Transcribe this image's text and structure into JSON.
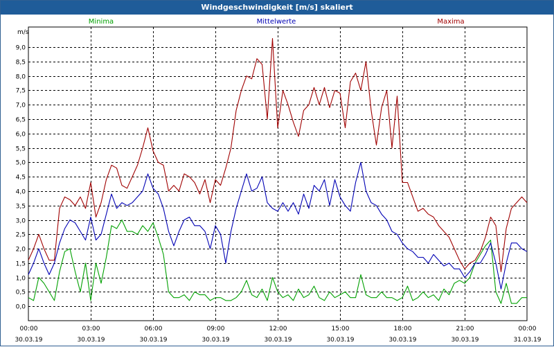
{
  "window": {
    "title": "Windgeschwindigkeit [m/s] skaliert"
  },
  "chart_data": {
    "type": "line",
    "title": "Windgeschwindigkeit [m/s] skaliert",
    "ylabel": "m/s",
    "xlabel": "",
    "ylim": [
      -0.5,
      9.7
    ],
    "xlim": [
      0,
      24
    ],
    "yticks": [
      0.0,
      0.5,
      1.0,
      1.5,
      2.0,
      2.5,
      3.0,
      3.5,
      4.0,
      4.5,
      5.0,
      5.5,
      6.0,
      6.5,
      7.0,
      7.5,
      8.0,
      8.5,
      9.0
    ],
    "ytick_labels": [
      "0,0",
      "0,5",
      "1,0",
      "1,5",
      "2,0",
      "2,5",
      "3,0",
      "3,5",
      "4,0",
      "4,5",
      "5,0",
      "5,5",
      "6,0",
      "6,5",
      "7,0",
      "7,5",
      "8,0",
      "8,5",
      "9,0"
    ],
    "xticks": [
      0,
      3,
      6,
      9,
      12,
      15,
      18,
      21,
      24
    ],
    "xtick_labels": [
      {
        "time": "00:00",
        "date": "30.03.19"
      },
      {
        "time": "03:00",
        "date": "30.03.19"
      },
      {
        "time": "06:00",
        "date": "30.03.19"
      },
      {
        "time": "09:00",
        "date": "30.03.19"
      },
      {
        "time": "12:00",
        "date": "30.03.19"
      },
      {
        "time": "15:00",
        "date": "30.03.19"
      },
      {
        "time": "18:00",
        "date": "30.03.19"
      },
      {
        "time": "21:00",
        "date": "30.03.19"
      },
      {
        "time": "00:00",
        "date": "31.03.19"
      }
    ],
    "grid": true,
    "legend_position": "top",
    "series": [
      {
        "name": "Minima",
        "color": "#00a000",
        "x": [
          0,
          0.25,
          0.5,
          0.75,
          1,
          1.25,
          1.5,
          1.75,
          2,
          2.25,
          2.5,
          2.75,
          3,
          3.25,
          3.5,
          3.75,
          4,
          4.25,
          4.5,
          4.75,
          5,
          5.25,
          5.5,
          5.75,
          6,
          6.25,
          6.5,
          6.75,
          7,
          7.25,
          7.5,
          7.75,
          8,
          8.25,
          8.5,
          8.75,
          9,
          9.25,
          9.5,
          9.75,
          10,
          10.25,
          10.5,
          10.75,
          11,
          11.25,
          11.5,
          11.75,
          12,
          12.25,
          12.5,
          12.75,
          13,
          13.25,
          13.5,
          13.75,
          14,
          14.25,
          14.5,
          14.75,
          15,
          15.25,
          15.5,
          15.75,
          16,
          16.25,
          16.5,
          16.75,
          17,
          17.25,
          17.5,
          17.75,
          18,
          18.25,
          18.5,
          18.75,
          19,
          19.25,
          19.5,
          19.75,
          20,
          20.25,
          20.5,
          20.75,
          21,
          21.25,
          21.5,
          21.75,
          22,
          22.25,
          22.5,
          22.75,
          23,
          23.25,
          23.5,
          23.75,
          24
        ],
        "values": [
          0.3,
          0.2,
          1.0,
          0.8,
          0.5,
          0.2,
          1.2,
          1.9,
          2.0,
          1.2,
          0.5,
          1.5,
          0.2,
          1.5,
          0.8,
          1.7,
          2.8,
          2.7,
          3.0,
          2.6,
          2.6,
          2.5,
          2.8,
          2.6,
          2.9,
          2.4,
          1.8,
          0.5,
          0.3,
          0.3,
          0.4,
          0.2,
          0.5,
          0.4,
          0.4,
          0.2,
          0.3,
          0.3,
          0.2,
          0.2,
          0.3,
          0.5,
          0.9,
          0.4,
          0.3,
          0.6,
          0.2,
          1.0,
          0.5,
          0.3,
          0.4,
          0.2,
          0.6,
          0.3,
          0.4,
          0.7,
          0.3,
          0.2,
          0.5,
          0.3,
          0.4,
          0.5,
          0.3,
          0.3,
          1.1,
          0.4,
          0.3,
          0.3,
          0.5,
          0.3,
          0.3,
          0.2,
          0.3,
          0.7,
          0.2,
          0.3,
          0.5,
          0.3,
          0.4,
          0.2,
          0.6,
          0.4,
          0.8,
          0.9,
          0.8,
          1.0,
          1.5,
          1.8,
          2.1,
          2.3,
          0.5,
          0.1,
          0.8,
          0.1,
          0.1,
          0.3,
          0.3
        ]
      },
      {
        "name": "Mittelwerte",
        "color": "#0000b4",
        "x": [
          0,
          0.25,
          0.5,
          0.75,
          1,
          1.25,
          1.5,
          1.75,
          2,
          2.25,
          2.5,
          2.75,
          3,
          3.25,
          3.5,
          3.75,
          4,
          4.25,
          4.5,
          4.75,
          5,
          5.25,
          5.5,
          5.75,
          6,
          6.25,
          6.5,
          6.75,
          7,
          7.25,
          7.5,
          7.75,
          8,
          8.25,
          8.5,
          8.75,
          9,
          9.25,
          9.5,
          9.75,
          10,
          10.25,
          10.5,
          10.75,
          11,
          11.25,
          11.5,
          11.75,
          12,
          12.25,
          12.5,
          12.75,
          13,
          13.25,
          13.5,
          13.75,
          14,
          14.25,
          14.5,
          14.75,
          15,
          15.25,
          15.5,
          15.75,
          16,
          16.25,
          16.5,
          16.75,
          17,
          17.25,
          17.5,
          17.75,
          18,
          18.25,
          18.5,
          18.75,
          19,
          19.25,
          19.5,
          19.75,
          20,
          20.25,
          20.5,
          20.75,
          21,
          21.25,
          21.5,
          21.75,
          22,
          22.25,
          22.5,
          22.75,
          23,
          23.25,
          23.5,
          23.75,
          24
        ],
        "values": [
          1.1,
          1.5,
          2.0,
          1.5,
          1.1,
          1.5,
          2.2,
          2.7,
          3.0,
          2.9,
          2.6,
          2.3,
          3.1,
          2.3,
          2.5,
          3.2,
          3.9,
          3.4,
          3.6,
          3.5,
          3.6,
          3.8,
          4.0,
          4.6,
          4.1,
          3.9,
          3.4,
          2.6,
          2.1,
          2.6,
          3.0,
          3.1,
          2.8,
          2.8,
          2.6,
          2.0,
          2.8,
          2.5,
          1.5,
          2.6,
          3.4,
          4.0,
          4.6,
          4.0,
          4.1,
          4.5,
          3.6,
          3.4,
          3.3,
          3.6,
          3.3,
          3.6,
          3.2,
          3.9,
          3.4,
          4.2,
          4.0,
          4.4,
          3.5,
          4.4,
          3.8,
          3.5,
          3.3,
          4.3,
          5.0,
          4.0,
          3.6,
          3.5,
          3.2,
          3.0,
          2.6,
          2.5,
          2.2,
          2.0,
          1.9,
          1.7,
          1.7,
          1.5,
          1.8,
          1.6,
          1.4,
          1.5,
          1.3,
          1.3,
          1.0,
          1.2,
          1.5,
          1.5,
          1.8,
          2.2,
          1.5,
          0.6,
          1.5,
          2.2,
          2.2,
          2.0,
          1.9
        ]
      },
      {
        "name": "Maxima",
        "color": "#a00000",
        "x": [
          0,
          0.25,
          0.5,
          0.75,
          1,
          1.25,
          1.5,
          1.75,
          2,
          2.25,
          2.5,
          2.75,
          3,
          3.25,
          3.5,
          3.75,
          4,
          4.25,
          4.5,
          4.75,
          5,
          5.25,
          5.5,
          5.75,
          6,
          6.25,
          6.5,
          6.75,
          7,
          7.25,
          7.5,
          7.75,
          8,
          8.25,
          8.5,
          8.75,
          9,
          9.25,
          9.5,
          9.75,
          10,
          10.25,
          10.5,
          10.75,
          11,
          11.25,
          11.5,
          11.75,
          12,
          12.25,
          12.5,
          12.75,
          13,
          13.25,
          13.5,
          13.75,
          14,
          14.25,
          14.5,
          14.75,
          15,
          15.25,
          15.5,
          15.75,
          16,
          16.25,
          16.5,
          16.75,
          17,
          17.25,
          17.5,
          17.75,
          18,
          18.25,
          18.5,
          18.75,
          19,
          19.25,
          19.5,
          19.75,
          20,
          20.25,
          20.5,
          20.75,
          21,
          21.25,
          21.5,
          21.75,
          22,
          22.25,
          22.5,
          22.75,
          23,
          23.25,
          23.5,
          23.75,
          24
        ],
        "values": [
          1.6,
          2.0,
          2.5,
          2.0,
          1.6,
          1.6,
          3.4,
          3.8,
          3.7,
          3.5,
          3.8,
          3.4,
          4.3,
          3.1,
          3.6,
          4.4,
          4.9,
          4.8,
          4.2,
          4.1,
          4.5,
          4.9,
          5.5,
          6.2,
          5.4,
          5.0,
          4.9,
          4.0,
          4.2,
          4.0,
          4.6,
          4.5,
          4.3,
          3.9,
          4.4,
          3.6,
          4.4,
          4.2,
          4.8,
          5.5,
          6.8,
          7.5,
          8.0,
          7.9,
          8.6,
          8.4,
          6.5,
          9.3,
          6.2,
          7.5,
          7.0,
          6.4,
          5.9,
          6.8,
          7.0,
          7.6,
          7.0,
          7.6,
          6.9,
          7.5,
          7.4,
          6.2,
          7.8,
          8.1,
          7.5,
          8.5,
          6.8,
          5.6,
          6.9,
          7.5,
          5.5,
          7.3,
          4.3,
          4.3,
          3.8,
          3.3,
          3.4,
          3.2,
          3.1,
          2.8,
          2.6,
          2.4,
          2.0,
          1.6,
          1.3,
          1.5,
          1.6,
          1.9,
          2.4,
          3.1,
          2.8,
          1.2,
          2.7,
          3.4,
          3.6,
          3.8,
          3.6
        ]
      }
    ]
  }
}
